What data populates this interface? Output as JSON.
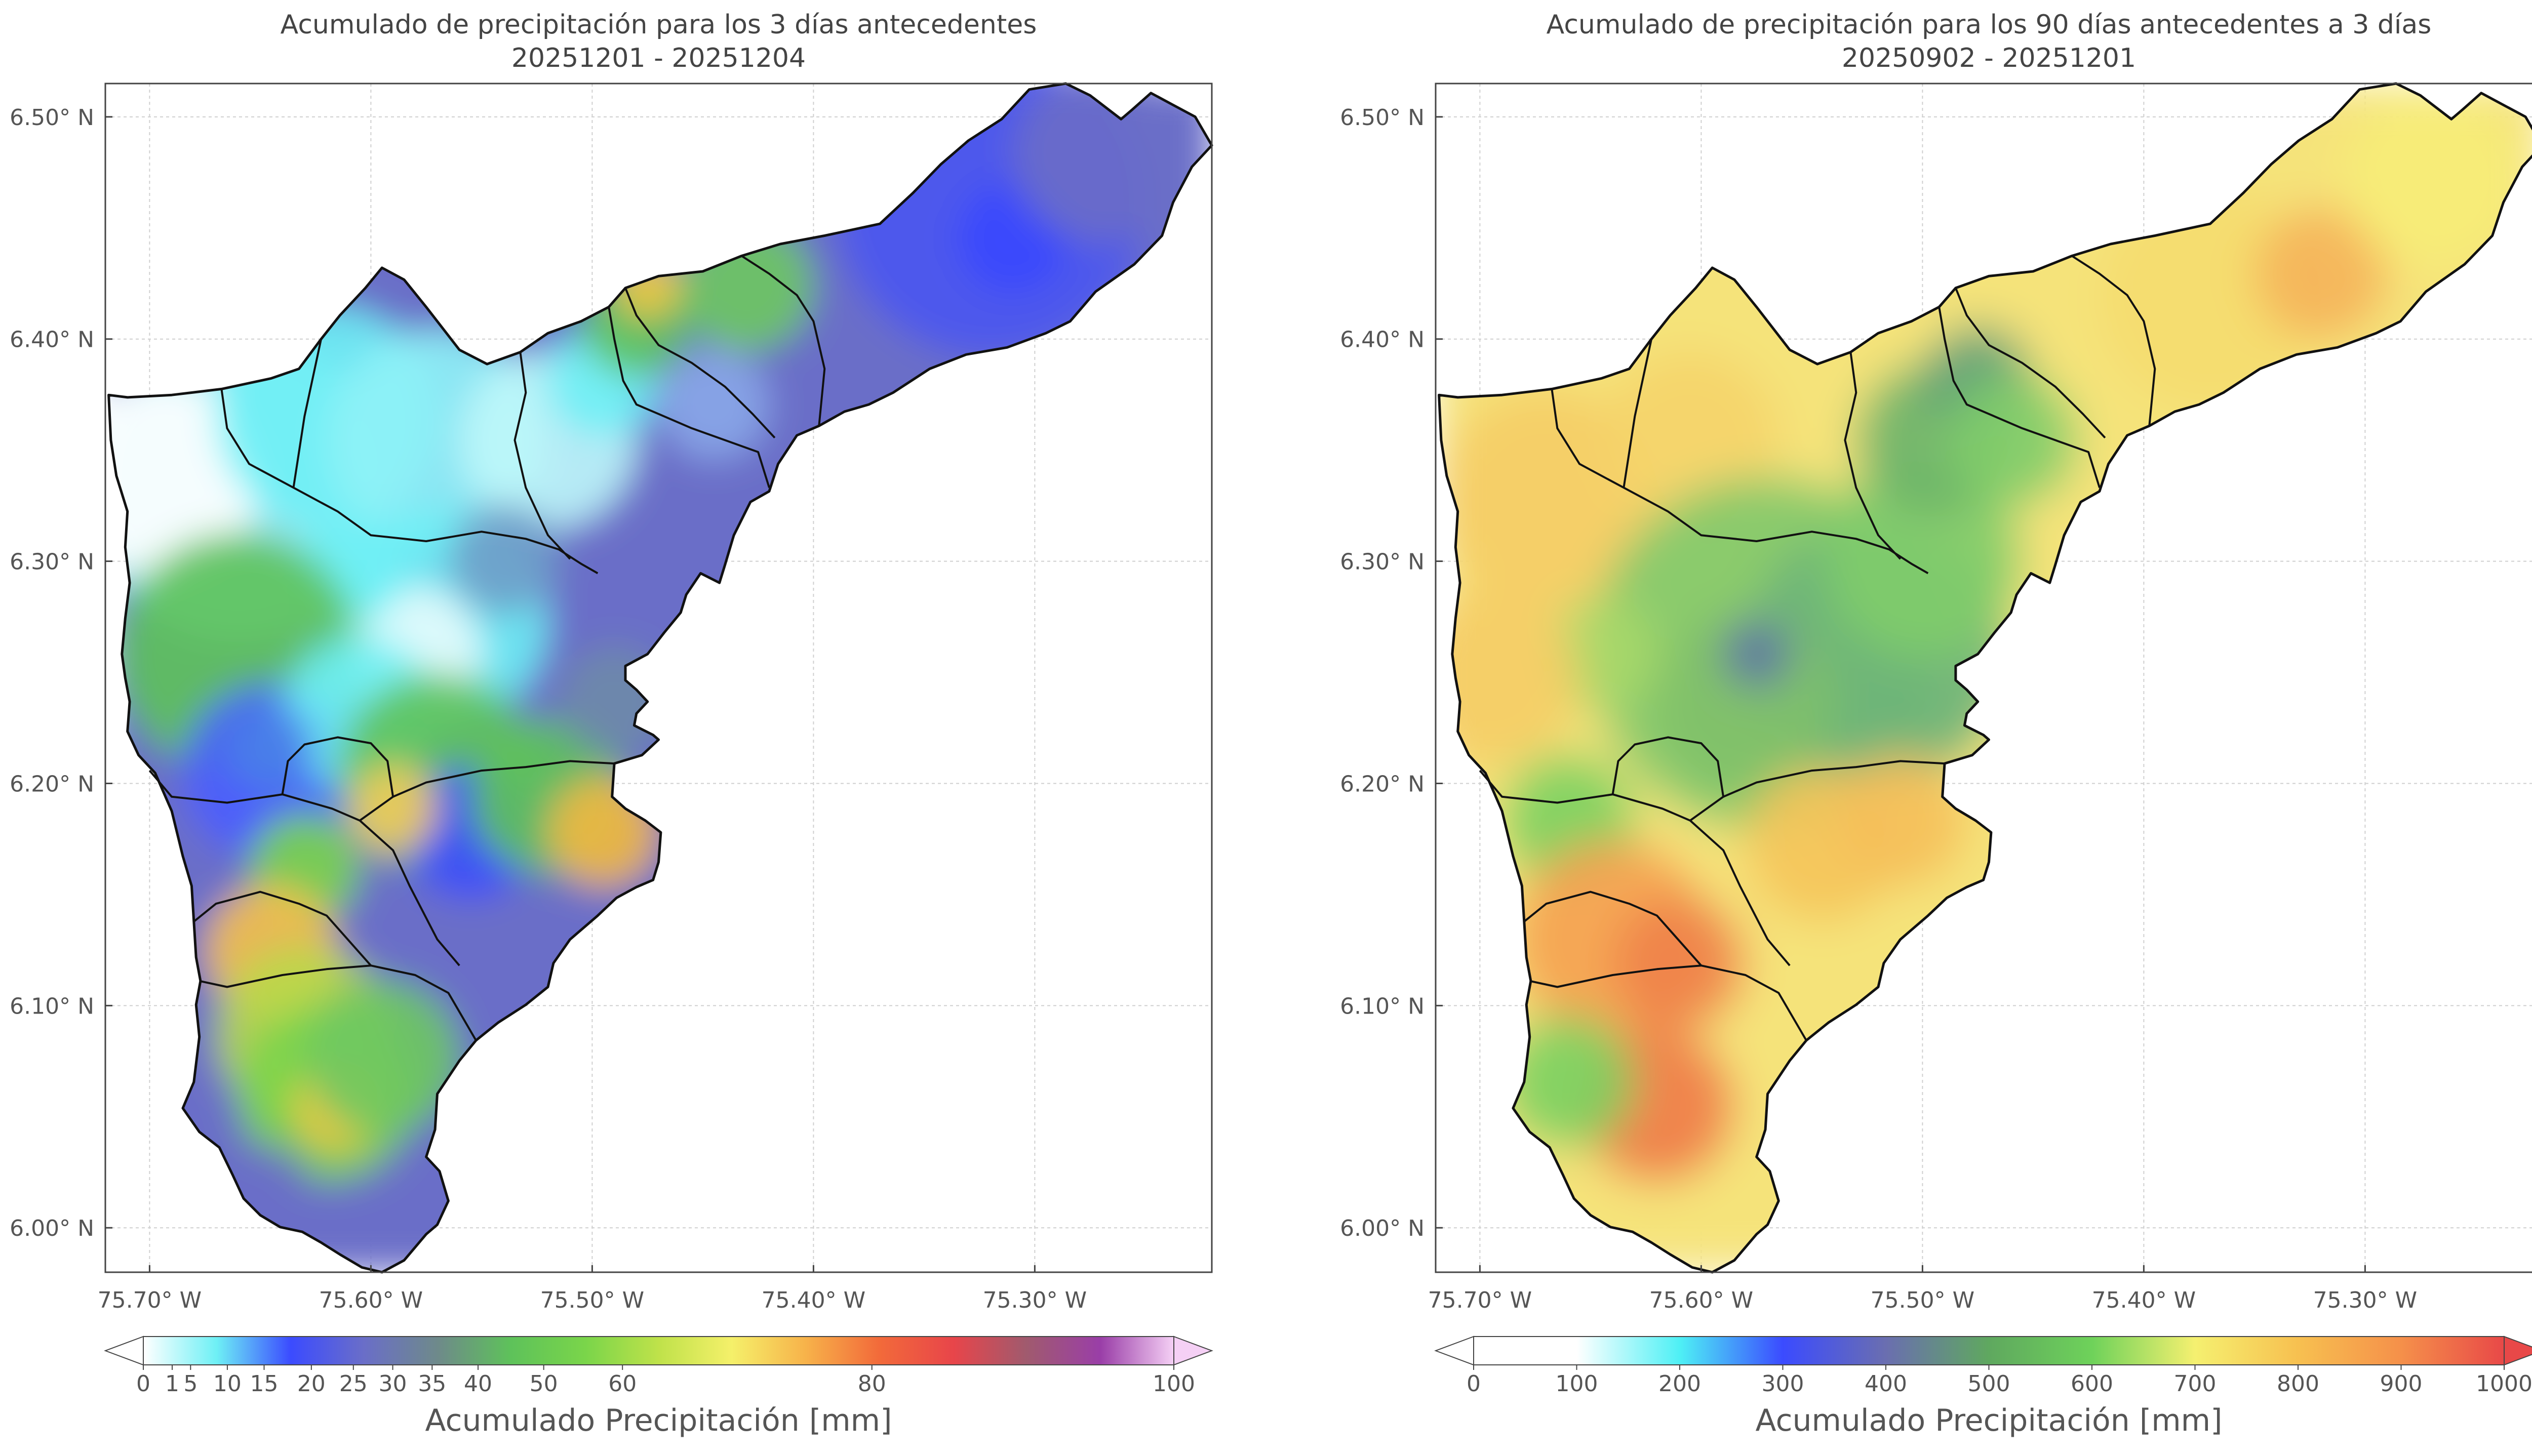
{
  "chart_data": [
    {
      "type": "heatmap",
      "title": "Acumulado de precipitación para los 3 días antecedentes",
      "subtitle": "20251201 - 20251204",
      "x_ticks": [
        "75.70° W",
        "75.60° W",
        "75.50° W",
        "75.40° W",
        "75.30° W"
      ],
      "y_ticks": [
        "6.50° N",
        "6.40° N",
        "6.30° N",
        "6.20° N",
        "6.10° N",
        "6.00° N"
      ],
      "x_values": [
        -75.7,
        -75.6,
        -75.5,
        -75.4,
        -75.3
      ],
      "y_values": [
        6.5,
        6.4,
        6.3,
        6.2,
        6.1,
        6.0
      ],
      "xlim": [
        -75.72,
        -75.22
      ],
      "ylim": [
        5.98,
        6.515
      ],
      "grid": true,
      "colorbar": {
        "label": "Acumulado Precipitación [mm]",
        "tick_labels": [
          "0",
          "1",
          "5",
          "10",
          "15",
          "20",
          "25",
          "30",
          "35",
          "40",
          "50",
          "60",
          "80",
          "100"
        ],
        "ticks": [
          0,
          1,
          5,
          10,
          15,
          20,
          25,
          30,
          35,
          40,
          50,
          60,
          80,
          100
        ],
        "extend": "both",
        "colors": [
          "#ffffff",
          "#6ef0f5",
          "#3b4bff",
          "#6a6ec8",
          "#6e8a8a",
          "#5ec25a",
          "#7ad54a",
          "#bfe24a",
          "#f5f06a",
          "#f7b24a",
          "#f26a3a",
          "#e8454a",
          "#a05a6e",
          "#9a3ea8",
          "#f5d0f5"
        ]
      }
    },
    {
      "type": "heatmap",
      "title": "Acumulado de precipitación para los 90 días antecedentes a 3 días",
      "subtitle": "20250902 - 20251201",
      "x_ticks": [
        "75.70° W",
        "75.60° W",
        "75.50° W",
        "75.40° W",
        "75.30° W"
      ],
      "y_ticks": [
        "6.50° N",
        "6.40° N",
        "6.30° N",
        "6.20° N",
        "6.10° N",
        "6.00° N"
      ],
      "x_values": [
        -75.7,
        -75.6,
        -75.5,
        -75.4,
        -75.3
      ],
      "y_values": [
        6.5,
        6.4,
        6.3,
        6.2,
        6.1,
        6.0
      ],
      "xlim": [
        -75.72,
        -75.22
      ],
      "ylim": [
        5.98,
        6.515
      ],
      "grid": true,
      "colorbar": {
        "label": "Acumulado Precipitación [mm]",
        "tick_labels": [
          "0",
          "100",
          "200",
          "300",
          "400",
          "500",
          "600",
          "700",
          "800",
          "900",
          "1000"
        ],
        "ticks": [
          0,
          100,
          200,
          300,
          400,
          500,
          600,
          700,
          800,
          900,
          1000
        ],
        "extend": "both",
        "colors": [
          "#ffffff",
          "#ffffff",
          "#4ef0f5",
          "#3b4bff",
          "#6a6eb0",
          "#5fa85f",
          "#6ed25a",
          "#f5f070",
          "#f7c050",
          "#f5904a",
          "#e84848"
        ]
      }
    }
  ]
}
